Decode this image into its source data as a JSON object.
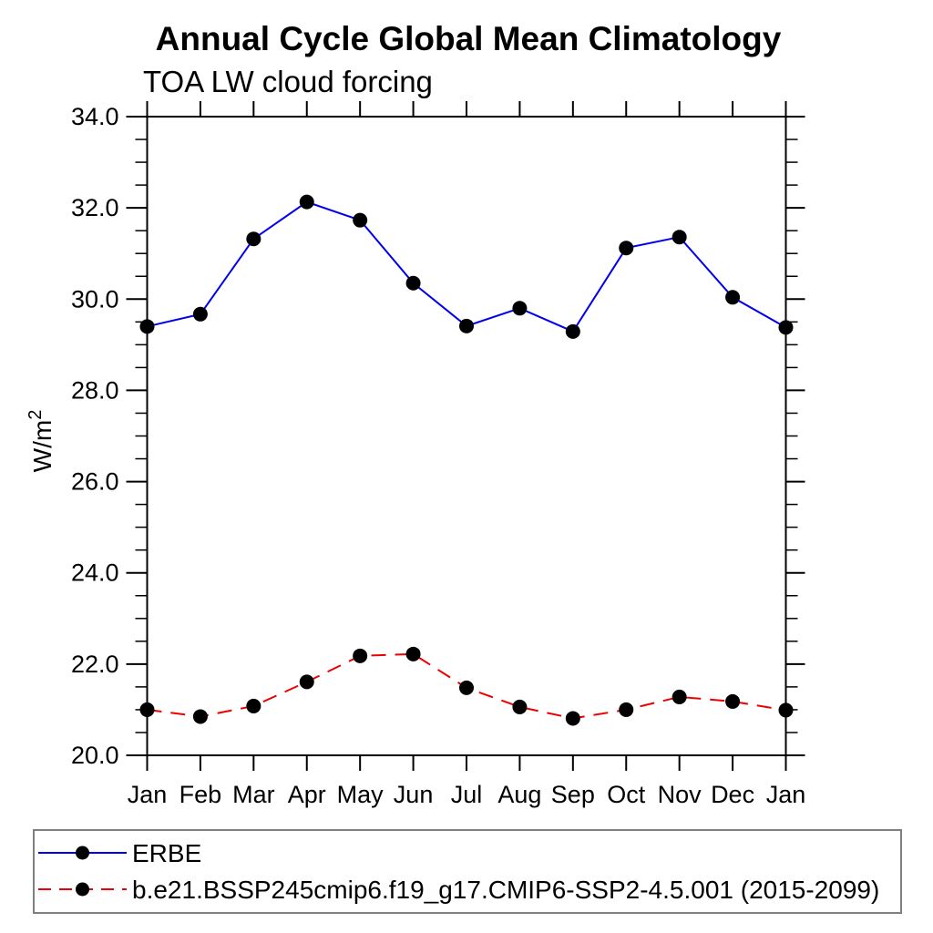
{
  "header": {
    "title": "Annual Cycle Global Mean Climatology",
    "subtitle": "TOA LW cloud forcing"
  },
  "y_axis": {
    "label_base": "W/m",
    "label_sup": "2",
    "tick_labels": [
      "20.0",
      "22.0",
      "24.0",
      "26.0",
      "28.0",
      "30.0",
      "32.0",
      "34.0"
    ]
  },
  "x_axis": {
    "tick_labels": [
      "Jan",
      "Feb",
      "Mar",
      "Apr",
      "May",
      "Jun",
      "Jul",
      "Aug",
      "Sep",
      "Oct",
      "Nov",
      "Dec",
      "Jan"
    ]
  },
  "chart_data": {
    "type": "line",
    "title": "Annual Cycle Global Mean Climatology",
    "subtitle": "TOA LW cloud forcing",
    "xlabel": "",
    "ylabel": "W/m2",
    "categories": [
      "Jan",
      "Feb",
      "Mar",
      "Apr",
      "May",
      "Jun",
      "Jul",
      "Aug",
      "Sep",
      "Oct",
      "Nov",
      "Dec",
      "Jan"
    ],
    "ylim": [
      20.0,
      34.0
    ],
    "ytick_major_step": 2.0,
    "ytick_minor_step": 0.5,
    "grid": false,
    "legend_position": "bottom-left-box",
    "series": [
      {
        "name": "ERBE",
        "line_style": "solid",
        "line_color": "#0000ee",
        "marker": "filled-circle",
        "marker_color": "#000000",
        "values": [
          29.4,
          29.67,
          31.32,
          32.13,
          31.73,
          30.35,
          29.41,
          29.8,
          29.29,
          31.12,
          31.36,
          30.04,
          29.38
        ]
      },
      {
        "name": "b.e21.BSSP245cmip6.f19_g17.CMIP6-SSP2-4.5.001 (2015-2099)",
        "line_style": "dashed",
        "line_color": "#ee0000",
        "marker": "filled-circle",
        "marker_color": "#000000",
        "values": [
          21.0,
          20.85,
          21.08,
          21.61,
          22.18,
          22.22,
          21.48,
          21.06,
          20.81,
          21.0,
          21.28,
          21.18,
          20.99
        ]
      }
    ]
  },
  "colors": {
    "axis": "#000000",
    "erbe_line": "#0000ee",
    "model_line": "#ee0000",
    "marker": "#000000",
    "legend_border": "#808080"
  }
}
